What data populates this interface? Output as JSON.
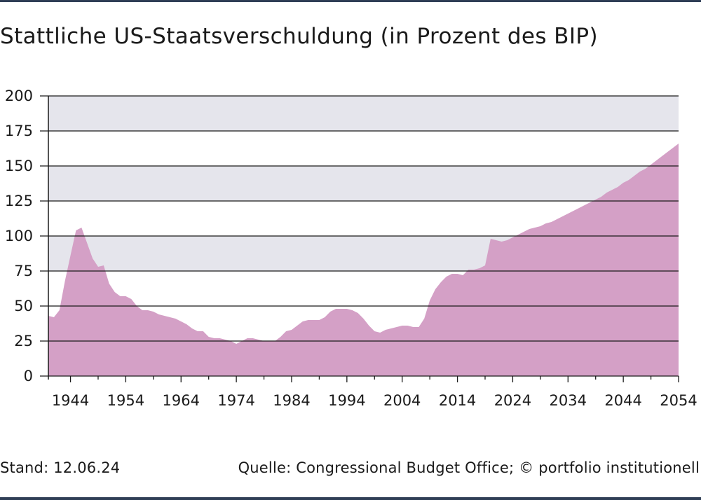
{
  "header": {
    "title": "Stattliche US-Staatsverschuldung (in Prozent des BIP)"
  },
  "footer": {
    "stand": "Stand: 12.06.24",
    "source": "Quelle: Congressional Budget Office; © portfolio institutionell"
  },
  "colors": {
    "area": "#d4a0c6",
    "band": "#e5e5ec",
    "gridline": "#1a1a1a",
    "rule": "#2f3e56"
  },
  "chart_data": {
    "type": "area",
    "title": "Stattliche US-Staatsverschuldung (in Prozent des BIP)",
    "xlabel": "",
    "ylabel": "",
    "xlim": [
      1940,
      2054
    ],
    "ylim": [
      0,
      200
    ],
    "yticks": [
      "0",
      "25",
      "50",
      "75",
      "100",
      "125",
      "150",
      "175",
      "200"
    ],
    "xticks": [
      "1944",
      "1954",
      "1964",
      "1974",
      "1984",
      "1994",
      "2004",
      "2014",
      "2024",
      "2034",
      "2044",
      "2054"
    ],
    "grid": true,
    "shaded_bands": [
      [
        75,
        100
      ],
      [
        125,
        150
      ],
      [
        175,
        200
      ]
    ],
    "x": [
      1940,
      1941,
      1942,
      1943,
      1944,
      1945,
      1946,
      1947,
      1948,
      1949,
      1950,
      1951,
      1952,
      1953,
      1954,
      1955,
      1956,
      1957,
      1958,
      1959,
      1960,
      1961,
      1962,
      1963,
      1964,
      1965,
      1966,
      1967,
      1968,
      1969,
      1970,
      1971,
      1972,
      1973,
      1974,
      1975,
      1976,
      1977,
      1978,
      1979,
      1980,
      1981,
      1982,
      1983,
      1984,
      1985,
      1986,
      1987,
      1988,
      1989,
      1990,
      1991,
      1992,
      1993,
      1994,
      1995,
      1996,
      1997,
      1998,
      1999,
      2000,
      2001,
      2002,
      2003,
      2004,
      2005,
      2006,
      2007,
      2008,
      2009,
      2010,
      2011,
      2012,
      2013,
      2014,
      2015,
      2016,
      2017,
      2018,
      2019,
      2020,
      2021,
      2022,
      2023,
      2024,
      2025,
      2026,
      2027,
      2028,
      2029,
      2030,
      2031,
      2032,
      2033,
      2034,
      2035,
      2036,
      2037,
      2038,
      2039,
      2040,
      2041,
      2042,
      2043,
      2044,
      2045,
      2046,
      2047,
      2048,
      2049,
      2050,
      2051,
      2052,
      2053,
      2054
    ],
    "values": [
      43,
      42,
      47,
      68,
      86,
      104,
      106,
      95,
      84,
      78,
      79,
      66,
      60,
      57,
      57,
      55,
      50,
      47,
      47,
      46,
      44,
      43,
      42,
      41,
      39,
      37,
      34,
      32,
      32,
      28,
      27,
      27,
      26,
      25,
      23,
      25,
      27,
      27,
      26,
      25,
      25,
      25,
      28,
      32,
      33,
      36,
      39,
      40,
      40,
      40,
      42,
      46,
      48,
      48,
      48,
      47,
      45,
      41,
      36,
      32,
      31,
      33,
      34,
      35,
      36,
      36,
      35,
      35,
      41,
      54,
      62,
      67,
      71,
      73,
      73,
      72,
      76,
      76,
      77,
      79,
      98,
      97,
      96,
      97,
      99,
      101,
      103,
      105,
      106,
      107,
      109,
      110,
      112,
      114,
      116,
      118,
      120,
      122,
      124,
      126,
      128,
      131,
      133,
      135,
      138,
      140,
      143,
      146,
      148,
      151,
      154,
      157,
      160,
      163,
      166
    ]
  }
}
